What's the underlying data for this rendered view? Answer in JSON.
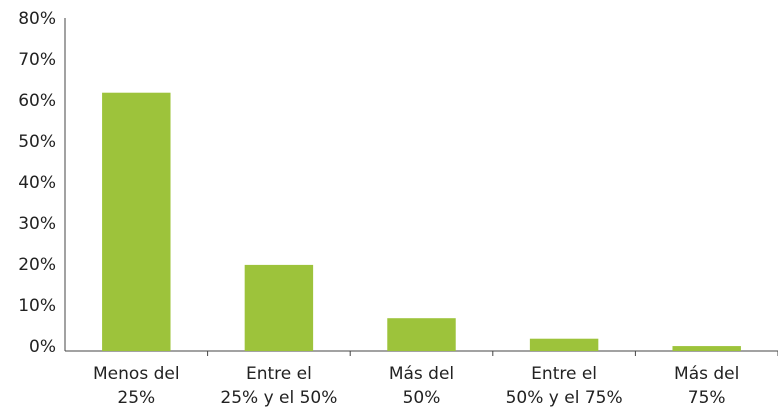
{
  "chart_data": {
    "type": "bar",
    "categories": [
      [
        "Menos del",
        "25%"
      ],
      [
        "Entre el",
        "25% y el 50%"
      ],
      [
        "Más del",
        "50%"
      ],
      [
        "Entre el",
        "50% y el 75%"
      ],
      [
        "Más del",
        "75%"
      ]
    ],
    "values": [
      63,
      21,
      8,
      3,
      1.2
    ],
    "color": "#9dc33b",
    "ylim": [
      0,
      80
    ],
    "yticks": [
      {
        "value": 0,
        "label": "0%"
      },
      {
        "value": 10,
        "label": "10%"
      },
      {
        "value": 20,
        "label": "20%"
      },
      {
        "value": 30,
        "label": "30%"
      },
      {
        "value": 40,
        "label": "40%"
      },
      {
        "value": 50,
        "label": "50%"
      },
      {
        "value": 60,
        "label": "60%"
      },
      {
        "value": 70,
        "label": "70%"
      },
      {
        "value": 80,
        "label": "80%"
      }
    ],
    "grid": false
  }
}
